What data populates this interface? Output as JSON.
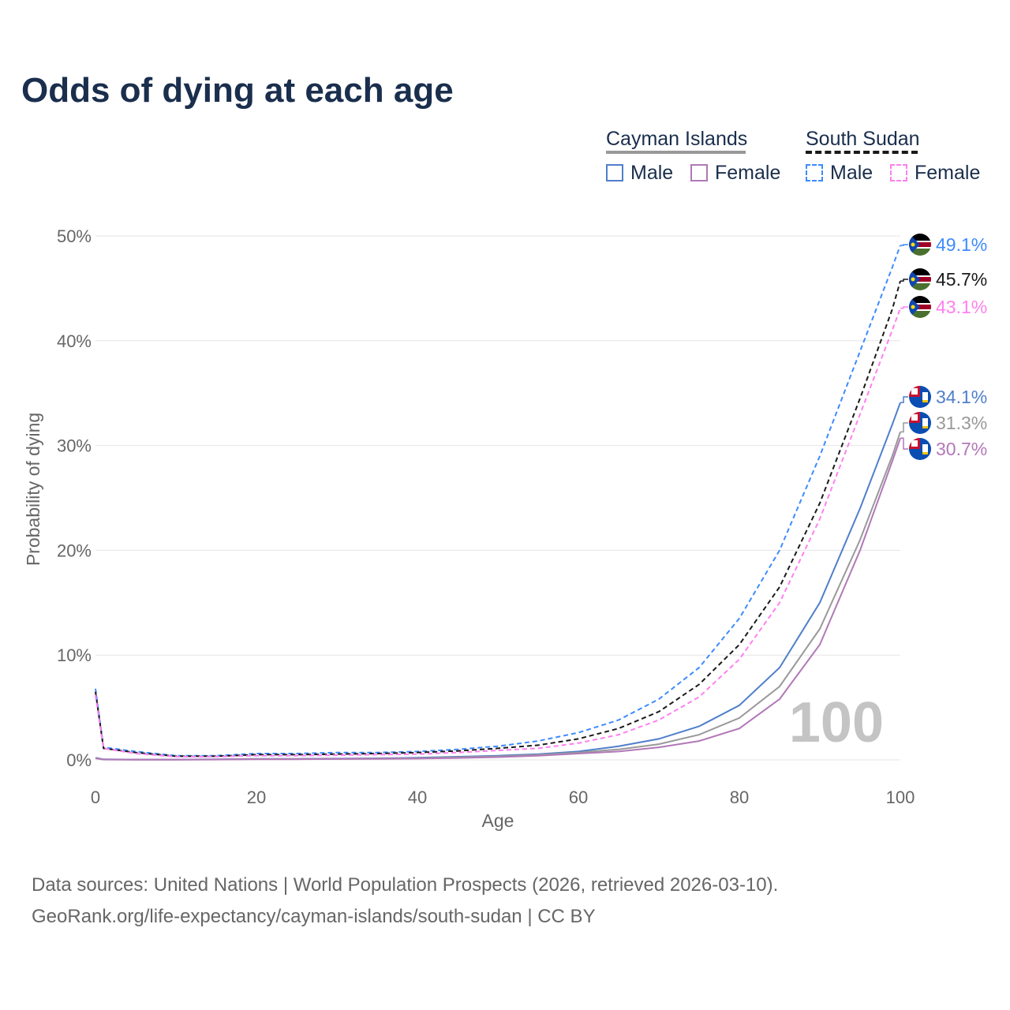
{
  "title": "Odds of dying at each age",
  "legend": {
    "groups": [
      {
        "name": "Cayman Islands",
        "items": [
          "Male",
          "Female"
        ]
      },
      {
        "name": "South Sudan",
        "items": [
          "Male",
          "Female"
        ]
      }
    ]
  },
  "colors": {
    "ci_male": "#4f7fcb",
    "ci_both": "#999999",
    "ci_female": "#b278b8",
    "ss_male": "#3d8bff",
    "ss_both": "#1a1a1a",
    "ss_female": "#ff80f0"
  },
  "watermark": "100",
  "sources": [
    "Data sources: United Nations | World Population Prospects (2026, retrieved 2026-03-10).",
    "GeoRank.org/life-expectancy/cayman-islands/south-sudan | CC BY"
  ],
  "chart_data": {
    "type": "line",
    "title": "Odds of dying at each age",
    "xlabel": "Age",
    "ylabel": "Probability of dying",
    "xlim": [
      0,
      100
    ],
    "ylim": [
      0,
      50
    ],
    "xticks": [
      "0",
      "20",
      "40",
      "60",
      "80",
      "100"
    ],
    "yticks": [
      "0%",
      "10%",
      "20%",
      "30%",
      "40%",
      "50%"
    ],
    "x": [
      0,
      1,
      5,
      10,
      15,
      20,
      25,
      30,
      35,
      40,
      45,
      50,
      55,
      60,
      65,
      70,
      75,
      80,
      85,
      90,
      95,
      99,
      100
    ],
    "series": [
      {
        "key": "ss_male",
        "name": "South Sudan Male",
        "dashed": true,
        "end_label": "49.1%",
        "flag": "south-sudan",
        "values": [
          6.8,
          1.2,
          0.8,
          0.4,
          0.4,
          0.6,
          0.6,
          0.7,
          0.7,
          0.8,
          1.0,
          1.3,
          1.8,
          2.6,
          3.8,
          5.8,
          8.8,
          13.5,
          20,
          29,
          39,
          47,
          49.1
        ]
      },
      {
        "key": "ss_both",
        "name": "South Sudan",
        "dashed": true,
        "end_label": "45.7%",
        "flag": "south-sudan",
        "values": [
          6.5,
          1.1,
          0.7,
          0.35,
          0.35,
          0.5,
          0.5,
          0.55,
          0.6,
          0.7,
          0.85,
          1.1,
          1.4,
          2.0,
          3.0,
          4.6,
          7.2,
          11,
          16.5,
          24.5,
          34.5,
          43,
          45.7
        ]
      },
      {
        "key": "ss_female",
        "name": "South Sudan Female",
        "dashed": true,
        "end_label": "43.1%",
        "flag": "south-sudan",
        "values": [
          6.2,
          1.1,
          0.6,
          0.3,
          0.3,
          0.4,
          0.4,
          0.45,
          0.5,
          0.55,
          0.7,
          0.9,
          1.1,
          1.6,
          2.4,
          3.8,
          6.0,
          9.6,
          15,
          23,
          33,
          41,
          43.1
        ]
      },
      {
        "key": "ci_male",
        "name": "Cayman Islands Male",
        "dashed": false,
        "end_label": "34.1%",
        "flag": "cayman-islands",
        "values": [
          0.2,
          0.05,
          0.03,
          0.03,
          0.05,
          0.1,
          0.1,
          0.12,
          0.15,
          0.2,
          0.3,
          0.4,
          0.55,
          0.8,
          1.3,
          2.0,
          3.2,
          5.2,
          8.8,
          15,
          24,
          32,
          34.1
        ]
      },
      {
        "key": "ci_both",
        "name": "Cayman Islands",
        "dashed": false,
        "end_label": "31.3%",
        "flag": "cayman-islands",
        "values": [
          0.18,
          0.04,
          0.02,
          0.02,
          0.04,
          0.08,
          0.08,
          0.1,
          0.12,
          0.16,
          0.24,
          0.33,
          0.48,
          0.7,
          1.0,
          1.5,
          2.4,
          4.0,
          7,
          12.5,
          21,
          29,
          31.3
        ]
      },
      {
        "key": "ci_female",
        "name": "Cayman Islands Female",
        "dashed": false,
        "end_label": "30.7%",
        "flag": "cayman-islands",
        "values": [
          0.15,
          0.03,
          0.02,
          0.02,
          0.03,
          0.05,
          0.06,
          0.08,
          0.1,
          0.12,
          0.18,
          0.26,
          0.4,
          0.6,
          0.8,
          1.2,
          1.8,
          3.0,
          5.8,
          11,
          20,
          28.5,
          30.7
        ]
      }
    ]
  }
}
